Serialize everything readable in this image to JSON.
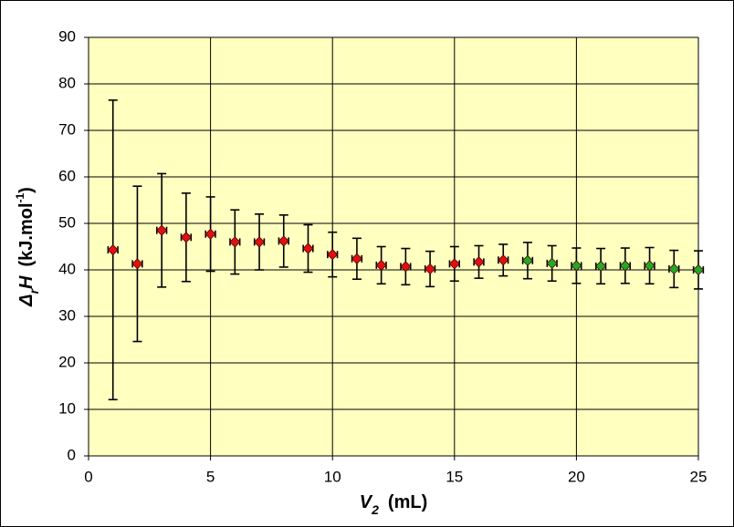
{
  "chart_data": {
    "type": "scatter",
    "ylabel": [
      {
        "text": "Δ",
        "shift": "none",
        "italic": true
      },
      {
        "text": "r",
        "shift": "sub",
        "italic": true
      },
      {
        "text": "H",
        "shift": "none",
        "italic": true
      },
      {
        "text": "(kJ.mol",
        "shift": "none",
        "italic": false
      },
      {
        "text": "-1",
        "shift": "sup",
        "italic": false
      },
      {
        "text": ")",
        "shift": "none",
        "italic": false
      }
    ],
    "xlabel": [
      {
        "text": "V",
        "shift": "none",
        "italic": true
      },
      {
        "text": "2",
        "shift": "sub",
        "italic": true
      },
      {
        "text": "(mL)",
        "shift": "none",
        "italic": false
      }
    ],
    "xlim": [
      0,
      25
    ],
    "xticks": [
      0,
      5,
      10,
      15,
      20,
      25
    ],
    "ylim": [
      0,
      90
    ],
    "yticks": [
      0,
      10,
      20,
      30,
      40,
      50,
      60,
      70,
      80,
      90
    ],
    "grid": true,
    "series": [
      {
        "color": "#e01010",
        "x": [
          1,
          2,
          3,
          4,
          5,
          6,
          7,
          8,
          9,
          10,
          11,
          12,
          13,
          14,
          15,
          16,
          17
        ],
        "values": [
          44.3,
          41.3,
          48.5,
          47,
          47.7,
          46,
          46,
          46.2,
          44.6,
          43.3,
          42.4,
          41,
          40.7,
          40.2,
          41.3,
          41.7,
          42.1
        ],
        "errors": [
          32.2,
          16.7,
          12.2,
          9.5,
          8,
          6.9,
          6,
          5.6,
          5.1,
          4.8,
          4.4,
          4,
          3.9,
          3.8,
          3.7,
          3.5,
          3.4
        ],
        "xerr": 0.2
      },
      {
        "color": "#22aa22",
        "x": [
          18,
          19,
          20,
          21,
          22,
          23,
          24,
          25
        ],
        "values": [
          42,
          41.4,
          40.9,
          40.8,
          40.9,
          40.9,
          40.2,
          40
        ],
        "errors": [
          3.9,
          3.8,
          3.8,
          3.8,
          3.8,
          3.9,
          4,
          4.1
        ],
        "xerr": 0.2
      }
    ]
  }
}
